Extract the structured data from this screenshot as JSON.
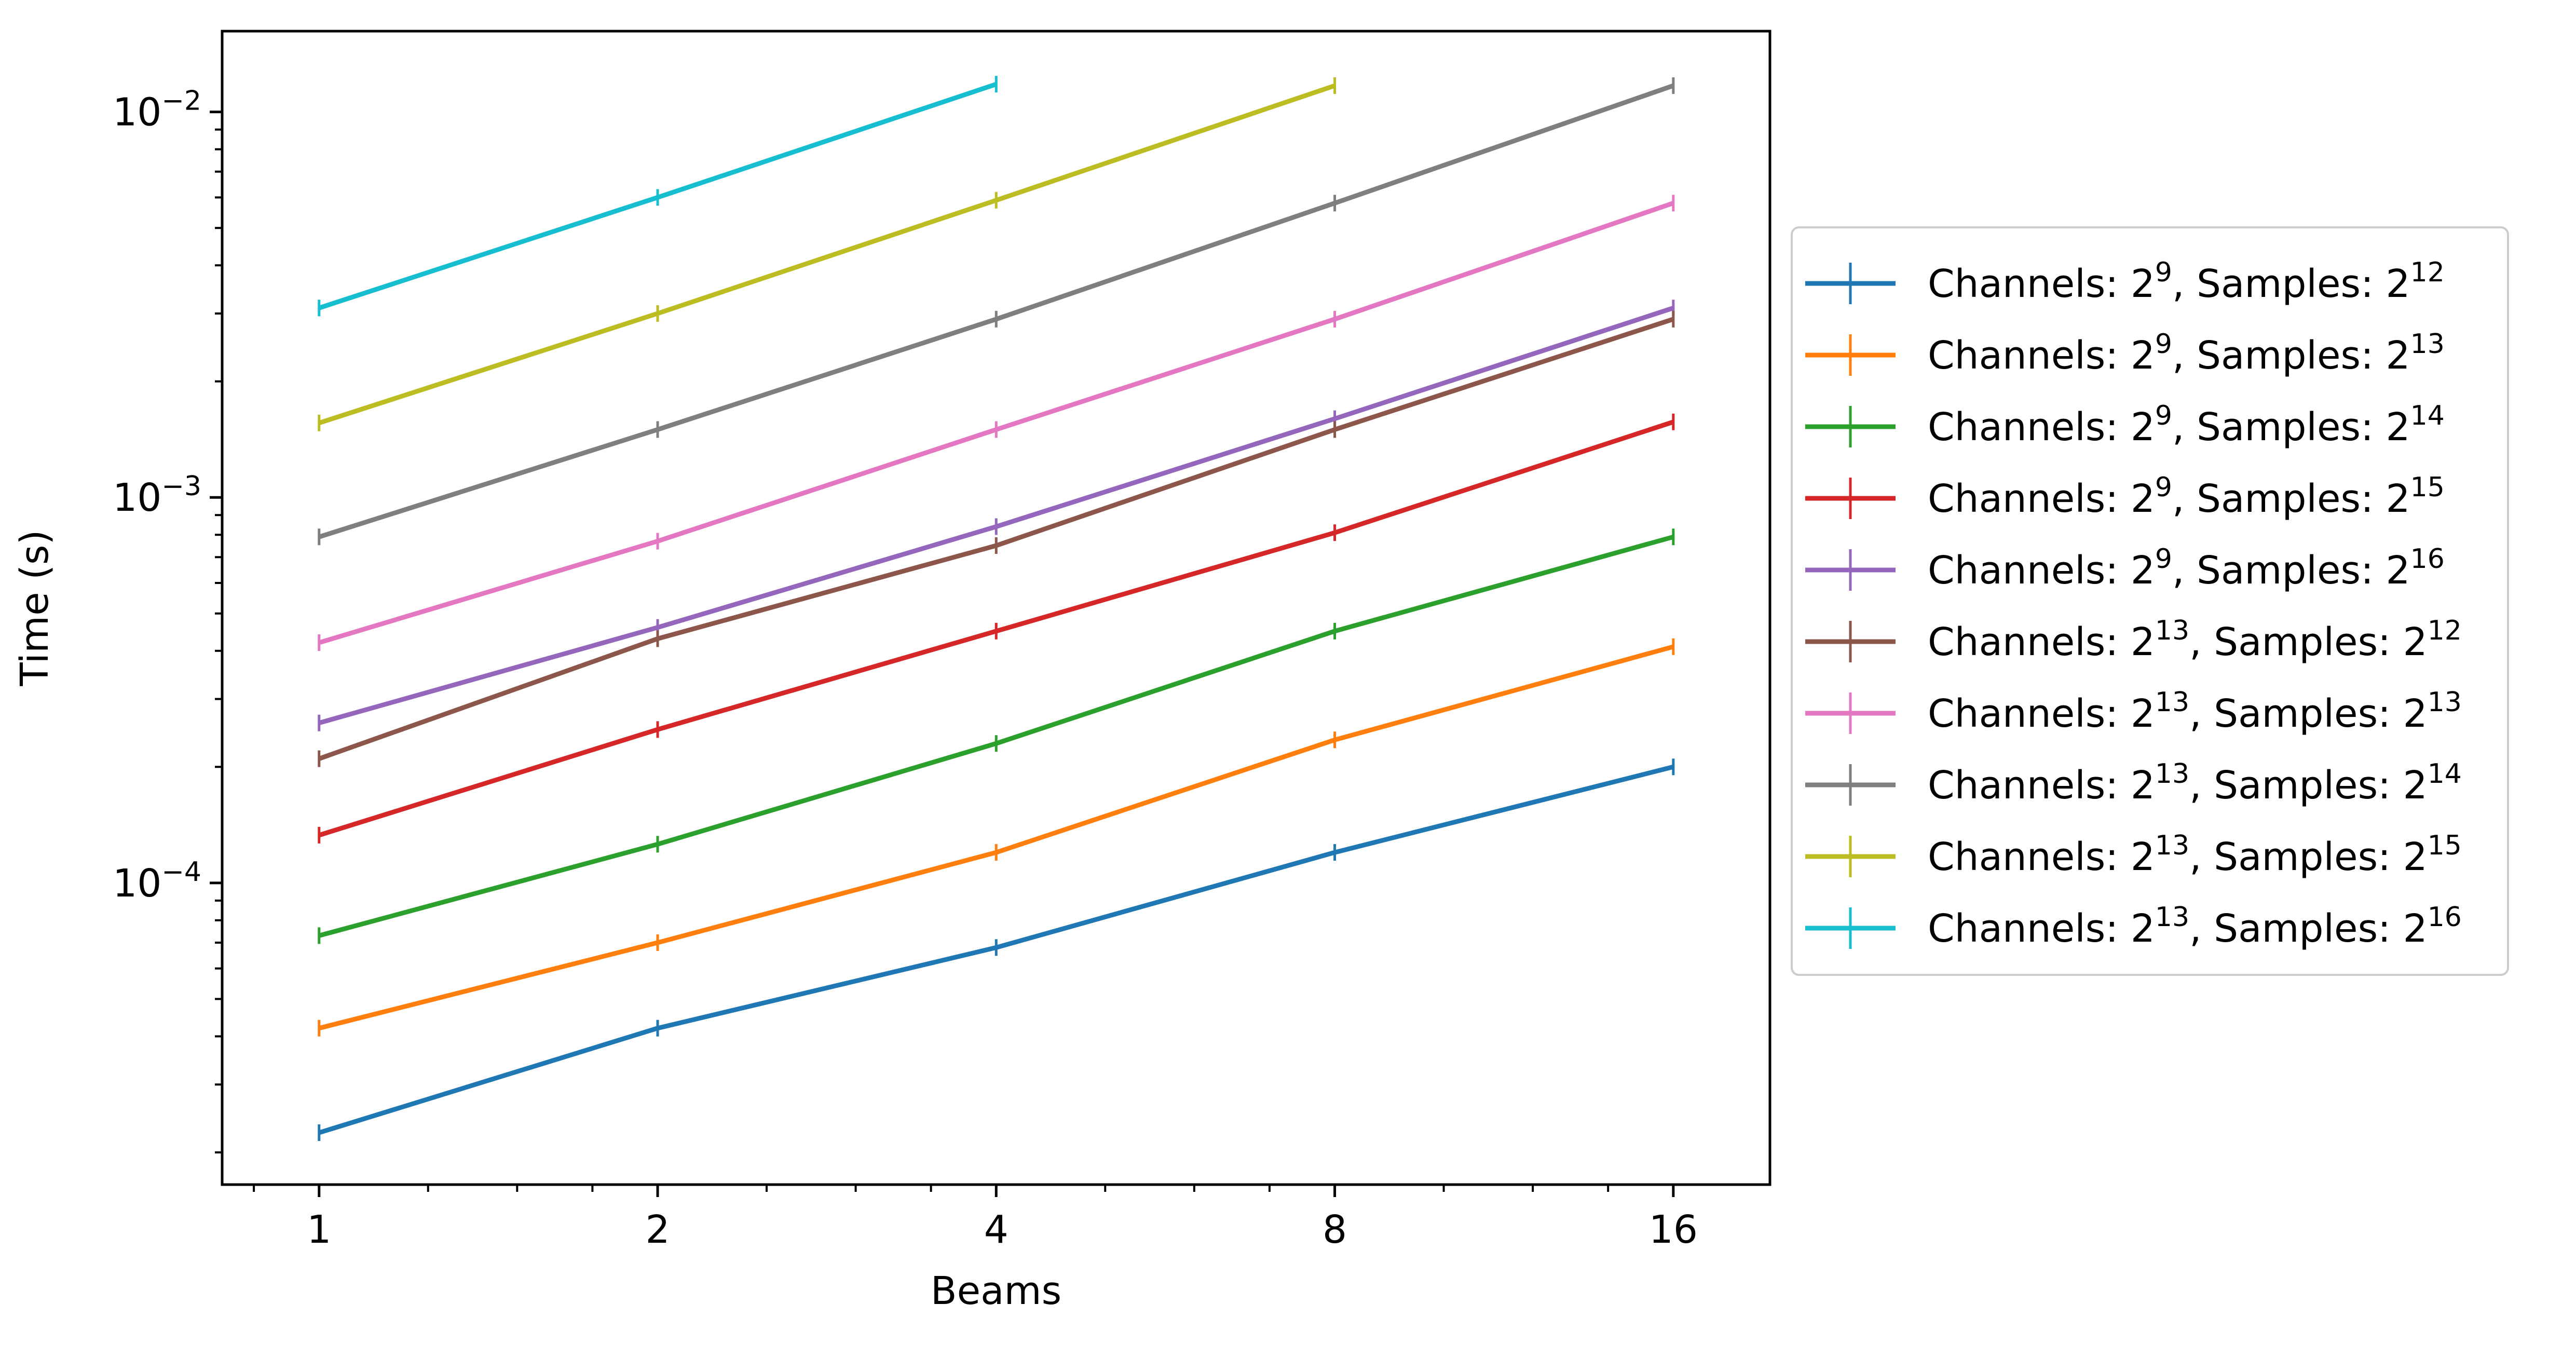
{
  "chart_data": {
    "type": "line",
    "title": "",
    "xlabel": "Beams",
    "ylabel": "Time (s)",
    "x_scale": "log2",
    "y_scale": "log10",
    "x_ticks": [
      1,
      2,
      4,
      8,
      16
    ],
    "x_tick_labels": [
      "1",
      "2",
      "4",
      "8",
      "16"
    ],
    "xlim": [
      0.82,
      19.5
    ],
    "y_ticks": [
      0.0001,
      0.001,
      0.01
    ],
    "y_tick_labels": [
      {
        "base": "10",
        "exp": "−4"
      },
      {
        "base": "10",
        "exp": "−3"
      },
      {
        "base": "10",
        "exp": "−2"
      }
    ],
    "ylim": [
      1.65e-05,
      0.0162
    ],
    "grid": false,
    "legend_position": "outside-right",
    "series": [
      {
        "color": "#1f77b4",
        "legend": {
          "ch_exp": "9",
          "s_exp": "12"
        },
        "x": [
          1,
          2,
          4,
          8,
          16
        ],
        "values": [
          2.25e-05,
          4.2e-05,
          6.8e-05,
          0.00012,
          0.0002
        ]
      },
      {
        "color": "#ff7f0e",
        "legend": {
          "ch_exp": "9",
          "s_exp": "13"
        },
        "x": [
          1,
          2,
          4,
          8,
          16
        ],
        "values": [
          4.2e-05,
          7e-05,
          0.00012,
          0.000235,
          0.00041
        ]
      },
      {
        "color": "#2ca02c",
        "legend": {
          "ch_exp": "9",
          "s_exp": "14"
        },
        "x": [
          1,
          2,
          4,
          8,
          16
        ],
        "values": [
          7.3e-05,
          0.000126,
          0.00023,
          0.00045,
          0.00079
        ]
      },
      {
        "color": "#d62728",
        "legend": {
          "ch_exp": "9",
          "s_exp": "15"
        },
        "x": [
          1,
          2,
          4,
          8,
          16
        ],
        "values": [
          0.000133,
          0.00025,
          0.00045,
          0.00081,
          0.00157
        ]
      },
      {
        "color": "#9467bd",
        "legend": {
          "ch_exp": "9",
          "s_exp": "16"
        },
        "x": [
          1,
          2,
          4,
          8,
          16
        ],
        "values": [
          0.00026,
          0.00046,
          0.00084,
          0.0016,
          0.0031
        ]
      },
      {
        "color": "#8c564b",
        "legend": {
          "ch_exp": "13",
          "s_exp": "12"
        },
        "x": [
          1,
          2,
          4,
          8,
          16
        ],
        "values": [
          0.00021,
          0.00043,
          0.00075,
          0.0015,
          0.0029
        ]
      },
      {
        "color": "#e377c2",
        "legend": {
          "ch_exp": "13",
          "s_exp": "13"
        },
        "x": [
          1,
          2,
          4,
          8,
          16
        ],
        "values": [
          0.00042,
          0.00077,
          0.0015,
          0.0029,
          0.0058
        ]
      },
      {
        "color": "#7f7f7f",
        "legend": {
          "ch_exp": "13",
          "s_exp": "14"
        },
        "x": [
          1,
          2,
          4,
          8,
          16
        ],
        "values": [
          0.00079,
          0.0015,
          0.0029,
          0.0058,
          0.0117
        ]
      },
      {
        "color": "#bcbd22",
        "legend": {
          "ch_exp": "13",
          "s_exp": "15"
        },
        "x": [
          1,
          2,
          4,
          8
        ],
        "values": [
          0.00156,
          0.003,
          0.0059,
          0.0117
        ]
      },
      {
        "color": "#17becf",
        "legend": {
          "ch_exp": "13",
          "s_exp": "16"
        },
        "x": [
          1,
          2,
          4
        ],
        "values": [
          0.0031,
          0.006,
          0.0118
        ]
      }
    ]
  }
}
